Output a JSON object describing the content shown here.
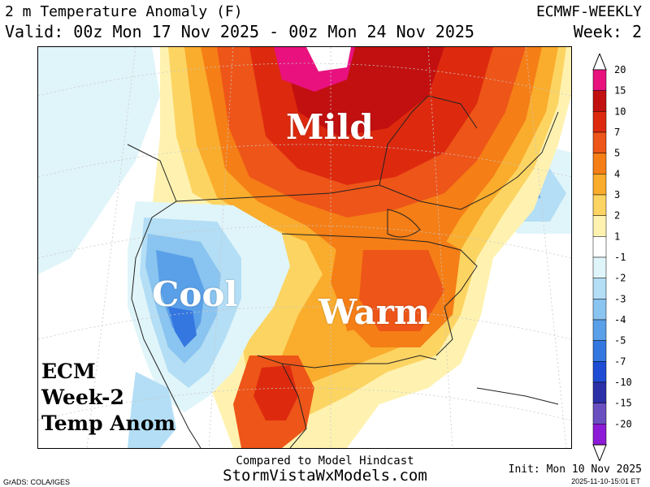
{
  "header": {
    "title": "2 m Temperature Anomaly (F)",
    "valid": "Valid: 00z Mon 17 Nov 2025 - 00z Mon 24 Nov 2025",
    "model": "ECMWF-WEEKLY",
    "week": "Week: 2"
  },
  "map": {
    "region_labels": {
      "mild": "Mild",
      "cool": "Cool",
      "warm": "Warm"
    },
    "stamp": {
      "line1": "ECM",
      "line2": "Week-2",
      "line3": "Temp Anom"
    },
    "colors": {
      "ocean_neutral": "#ffffff",
      "minus1_to_minus2": "#e0f5fa",
      "minus2_to_minus3": "#b3def5",
      "minus3_to_minus4": "#8ac4f0",
      "minus4_to_minus5": "#5aa0e8",
      "minus5_to_minus7": "#3577e0",
      "plus1_to_2": "#fff2b0",
      "plus2_to_3": "#fcd462",
      "plus3_to_4": "#faac2c",
      "plus4_to_5": "#f57e16",
      "plus5_to_7": "#ee5518",
      "plus7_to_10": "#dd2a0f",
      "plus10_to_15": "#c21010",
      "plus15_to_20": "#e8117e"
    }
  },
  "legend": {
    "labels": [
      "20",
      "15",
      "10",
      "7",
      "5",
      "4",
      "3",
      "2",
      "1",
      "-1",
      "-2",
      "-3",
      "-4",
      "-5",
      "-7",
      "-10",
      "-15",
      "-20"
    ],
    "colors": [
      "#e8117e",
      "#c21010",
      "#dd2a0f",
      "#ee5518",
      "#f57e16",
      "#faac2c",
      "#fcd462",
      "#fff2b0",
      "#ffffff",
      "#e0f5fa",
      "#b3def5",
      "#8ac4f0",
      "#5aa0e8",
      "#3577e0",
      "#1f4cd4",
      "#2b2fa8",
      "#6a4fc0",
      "#8d1ad6"
    ]
  },
  "footer": {
    "compared": "Compared to Model Hindcast",
    "site": "StormVistaWxModels.com",
    "grads": "GrADS: COLA/IGES",
    "init": "Init: Mon 10 Nov 2025",
    "timestamp": "2025-11-10-15:01 ET"
  }
}
